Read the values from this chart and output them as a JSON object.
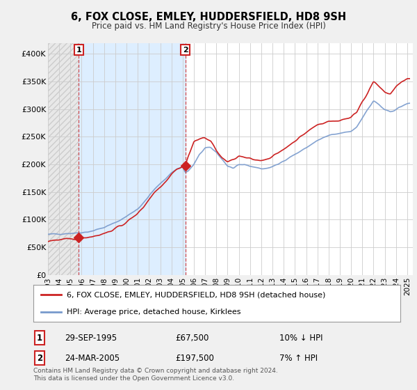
{
  "title": "6, FOX CLOSE, EMLEY, HUDDERSFIELD, HD8 9SH",
  "subtitle": "Price paid vs. HM Land Registry's House Price Index (HPI)",
  "xlim_start": 1993.0,
  "xlim_end": 2025.5,
  "ylim": [
    0,
    420000
  ],
  "yticks": [
    0,
    50000,
    100000,
    150000,
    200000,
    250000,
    300000,
    350000,
    400000
  ],
  "ytick_labels": [
    "£0",
    "£50K",
    "£100K",
    "£150K",
    "£200K",
    "£250K",
    "£300K",
    "£350K",
    "£400K"
  ],
  "sale1_x": 1995.75,
  "sale1_y": 67500,
  "sale2_x": 2005.23,
  "sale2_y": 197500,
  "sale1_date": "29-SEP-1995",
  "sale1_price": "£67,500",
  "sale1_hpi": "10% ↓ HPI",
  "sale2_date": "24-MAR-2005",
  "sale2_price": "£197,500",
  "sale2_hpi": "7% ↑ HPI",
  "legend_line1": "6, FOX CLOSE, EMLEY, HUDDERSFIELD, HD8 9SH (detached house)",
  "legend_line2": "HPI: Average price, detached house, Kirklees",
  "footer": "Contains HM Land Registry data © Crown copyright and database right 2024.\nThis data is licensed under the Open Government Licence v3.0.",
  "background_color": "#f0f0f0",
  "plot_bg_color": "#ffffff",
  "grid_color": "#cccccc",
  "hpi_color": "#7799cc",
  "price_color": "#cc2222",
  "shaded_color": "#ddeeff",
  "hatch_color": "#dddddd",
  "xticks": [
    1993,
    1994,
    1995,
    1996,
    1997,
    1998,
    1999,
    2000,
    2001,
    2002,
    2003,
    2004,
    2005,
    2006,
    2007,
    2008,
    2009,
    2010,
    2011,
    2012,
    2013,
    2014,
    2015,
    2016,
    2017,
    2018,
    2019,
    2020,
    2021,
    2022,
    2023,
    2024,
    2025
  ]
}
